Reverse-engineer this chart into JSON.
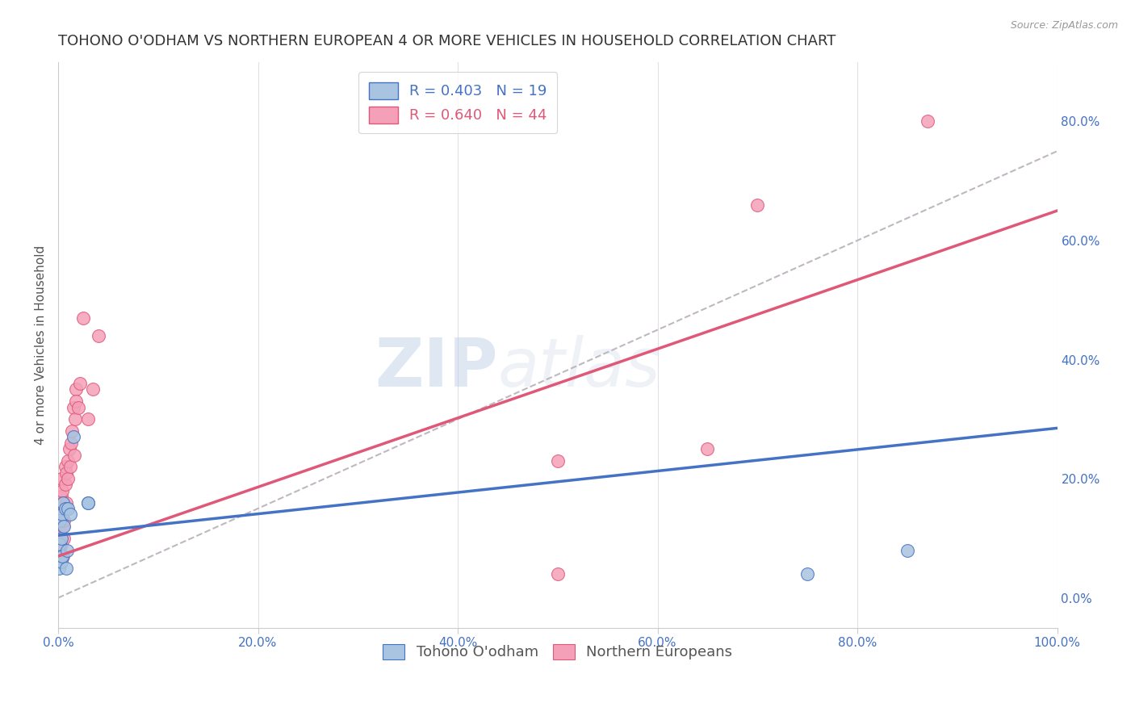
{
  "title": "TOHONO O'ODHAM VS NORTHERN EUROPEAN 4 OR MORE VEHICLES IN HOUSEHOLD CORRELATION CHART",
  "source": "Source: ZipAtlas.com",
  "xlabel": "",
  "ylabel": "4 or more Vehicles in Household",
  "legend_label_blue": "Tohono O'odham",
  "legend_label_pink": "Northern Europeans",
  "R_blue": 0.403,
  "N_blue": 19,
  "R_pink": 0.64,
  "N_pink": 44,
  "color_blue": "#a8c4e0",
  "color_pink": "#f4a0b8",
  "trend_blue": "#4472c4",
  "trend_pink": "#e05878",
  "trend_dashed": "#c0b8c0",
  "xlim": [
    0.0,
    1.0
  ],
  "ylim": [
    -0.05,
    0.9
  ],
  "xticks": [
    0.0,
    0.2,
    0.4,
    0.6,
    0.8,
    1.0
  ],
  "yticks_right": [
    0.0,
    0.2,
    0.4,
    0.6,
    0.8
  ],
  "blue_x": [
    0.001,
    0.002,
    0.002,
    0.003,
    0.003,
    0.004,
    0.004,
    0.005,
    0.006,
    0.007,
    0.008,
    0.009,
    0.01,
    0.012,
    0.015,
    0.03,
    0.03,
    0.75,
    0.85
  ],
  "blue_y": [
    0.05,
    0.09,
    0.13,
    0.06,
    0.1,
    0.14,
    0.07,
    0.16,
    0.12,
    0.15,
    0.05,
    0.08,
    0.15,
    0.14,
    0.27,
    0.16,
    0.16,
    0.04,
    0.08
  ],
  "pink_x": [
    0.001,
    0.001,
    0.002,
    0.002,
    0.002,
    0.002,
    0.003,
    0.003,
    0.003,
    0.003,
    0.004,
    0.004,
    0.005,
    0.005,
    0.005,
    0.006,
    0.006,
    0.007,
    0.007,
    0.008,
    0.008,
    0.009,
    0.01,
    0.01,
    0.011,
    0.012,
    0.013,
    0.014,
    0.015,
    0.016,
    0.017,
    0.018,
    0.018,
    0.02,
    0.022,
    0.025,
    0.03,
    0.035,
    0.04,
    0.5,
    0.65,
    0.7,
    0.87,
    0.5
  ],
  "pink_y": [
    0.07,
    0.1,
    0.11,
    0.08,
    0.13,
    0.16,
    0.09,
    0.13,
    0.17,
    0.2,
    0.14,
    0.18,
    0.07,
    0.12,
    0.16,
    0.1,
    0.13,
    0.19,
    0.22,
    0.16,
    0.21,
    0.15,
    0.2,
    0.23,
    0.25,
    0.22,
    0.26,
    0.28,
    0.32,
    0.24,
    0.3,
    0.35,
    0.33,
    0.32,
    0.36,
    0.47,
    0.3,
    0.35,
    0.44,
    0.23,
    0.25,
    0.66,
    0.8,
    0.04
  ],
  "blue_trend_y_start": 0.105,
  "blue_trend_y_end": 0.285,
  "pink_trend_y_start": 0.07,
  "pink_trend_y_end": 0.65,
  "dashed_trend_y_start": 0.0,
  "dashed_trend_y_end": 0.75,
  "watermark_zip": "ZIP",
  "watermark_atlas": "atlas",
  "background_color": "#ffffff",
  "grid_color": "#dddde8",
  "title_fontsize": 13,
  "axis_label_fontsize": 11,
  "tick_fontsize": 11,
  "legend_fontsize": 13,
  "marker_size": 130
}
